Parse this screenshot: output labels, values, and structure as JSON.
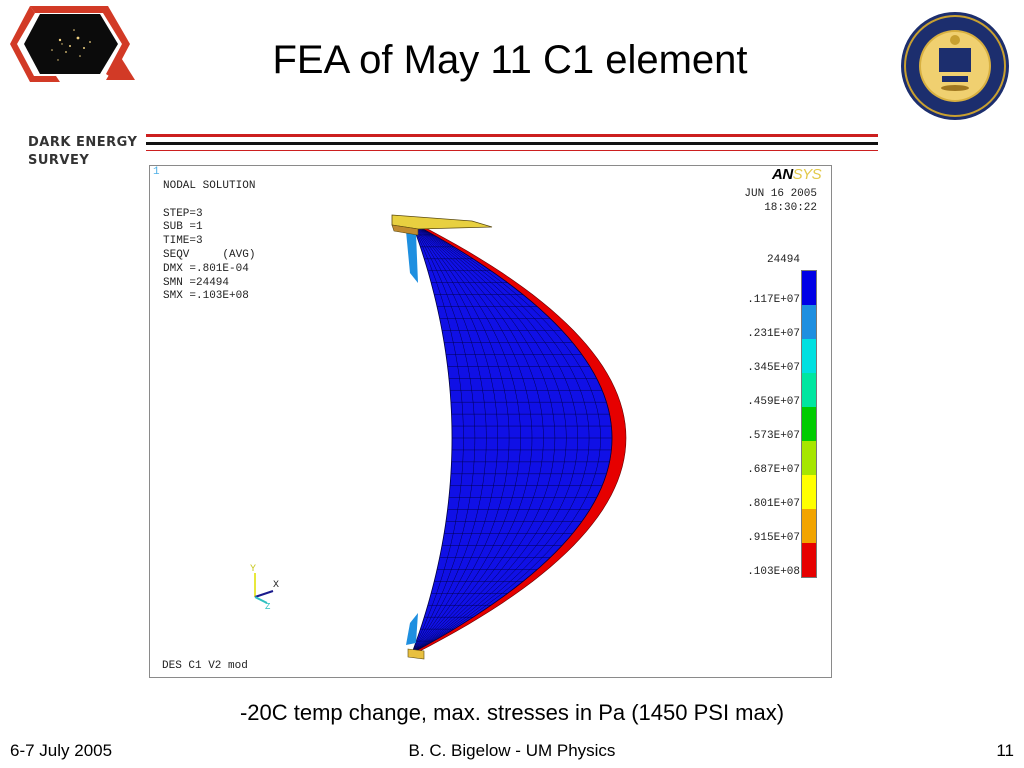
{
  "header": {
    "title": "FEA of May 11 C1 element",
    "des_logo_text_line1": "DARK ENERGY",
    "des_logo_text_line2": "SURVEY"
  },
  "fea": {
    "window_number": "1",
    "info_lines": [
      "NODAL SOLUTION",
      "",
      "STEP=3",
      "SUB =1",
      "TIME=3",
      "SEQV     (AVG)",
      "DMX =.801E-04",
      "SMN =24494",
      "SMX =.103E+08"
    ],
    "date": "JUN 16 2005",
    "time": "18:30:22",
    "brand_prefix": "AN",
    "brand_suffix": "SYS",
    "legend_min": "24494",
    "legend_ticks": [
      ".117E+07",
      ".231E+07",
      ".345E+07",
      ".459E+07",
      ".573E+07",
      ".687E+07",
      ".801E+07",
      ".915E+07",
      ".103E+08"
    ],
    "legend_colors": [
      "#0000e6",
      "#1e8fe0",
      "#00e0e0",
      "#00e6a0",
      "#00cc00",
      "#a6e600",
      "#ffff00",
      "#f2a400",
      "#e60000"
    ],
    "footer_label": "DES C1 V2 mod",
    "axis_y": "Y",
    "axis_x": "X",
    "axis_z": "Z"
  },
  "caption": "-20C temp change, max. stresses in Pa (1450 PSI max)",
  "footer": {
    "date": "6-7 July 2005",
    "author": "B. C. Bigelow - UM Physics",
    "page": "11"
  }
}
